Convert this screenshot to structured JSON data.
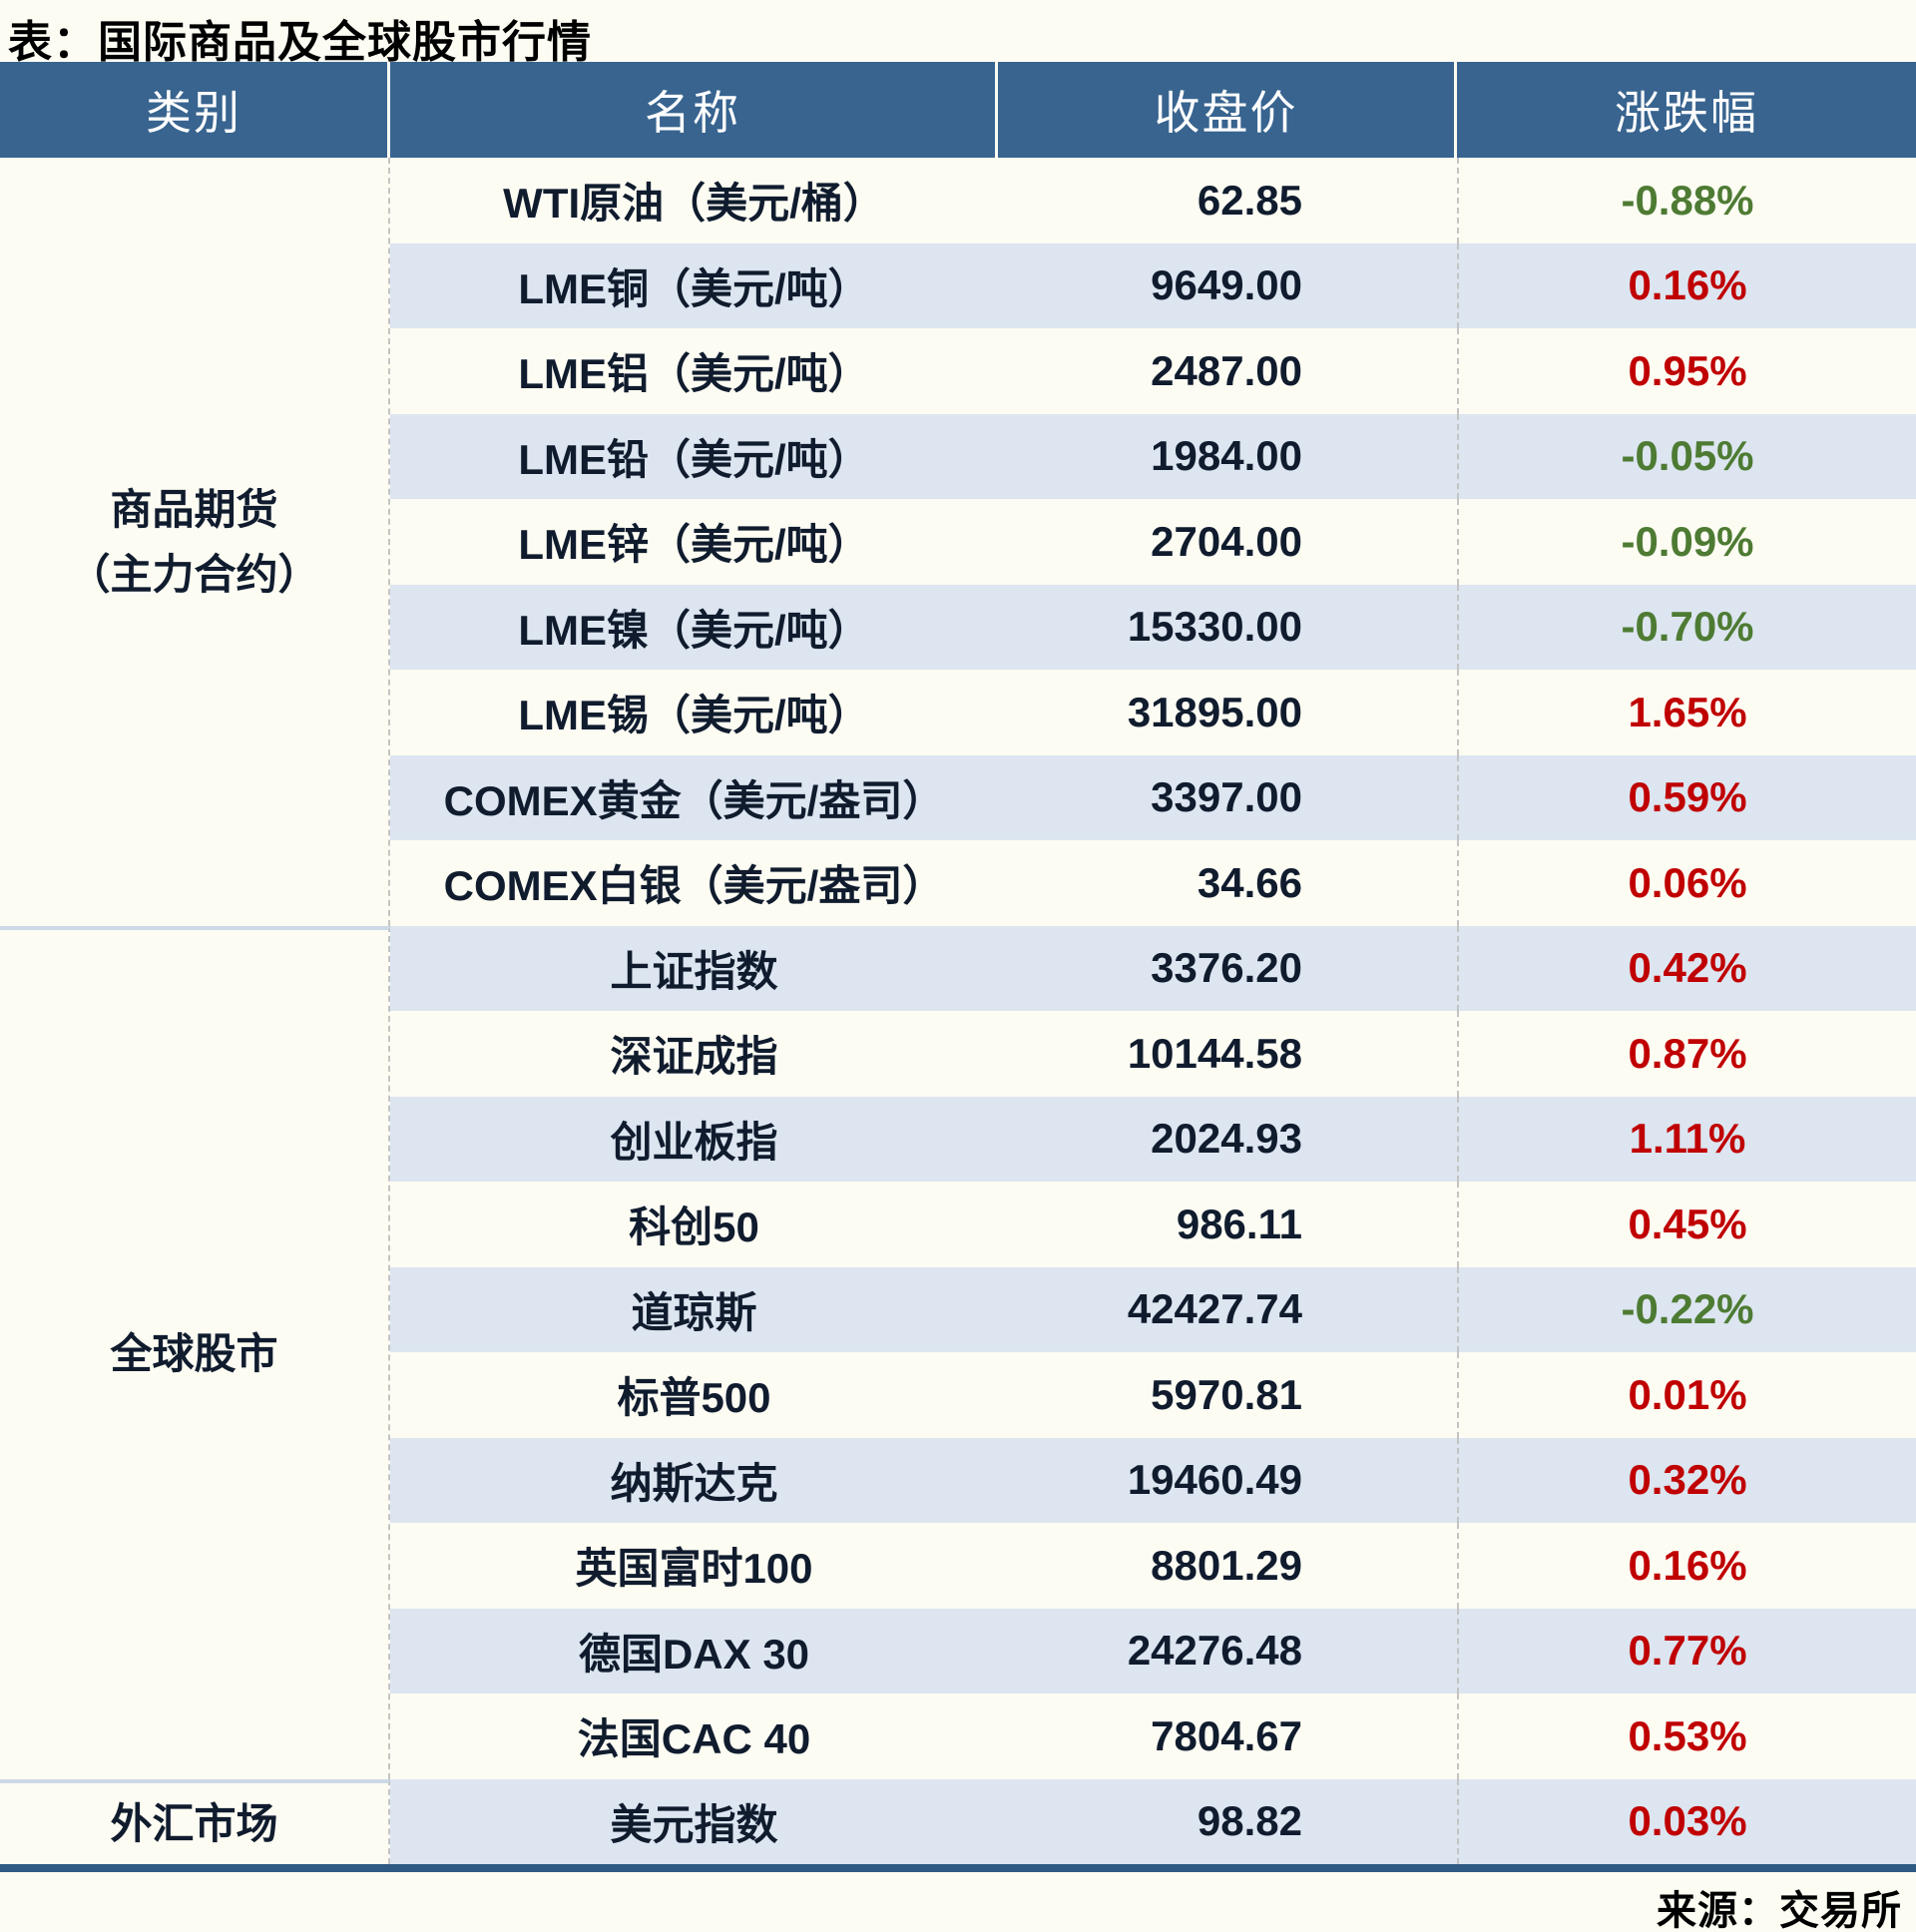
{
  "chart_data": {
    "type": "table",
    "title": "表：国际商品及全球股市行情",
    "source": "来源：交易所",
    "columns": [
      "类别",
      "名称",
      "收盘价",
      "涨跌幅"
    ],
    "sections": [
      {
        "category": "商品期货（主力合约）",
        "category_lines": [
          "商品期货",
          "（主力合约）"
        ],
        "rows": [
          [
            "WTI原油（美元/桶）",
            "62.85",
            "-0.88%"
          ],
          [
            "LME铜（美元/吨）",
            "9649.00",
            "0.16%"
          ],
          [
            "LME铝（美元/吨）",
            "2487.00",
            "0.95%"
          ],
          [
            "LME铅（美元/吨）",
            "1984.00",
            "-0.05%"
          ],
          [
            "LME锌（美元/吨）",
            "2704.00",
            "-0.09%"
          ],
          [
            "LME镍（美元/吨）",
            "15330.00",
            "-0.70%"
          ],
          [
            "LME锡（美元/吨）",
            "31895.00",
            "1.65%"
          ],
          [
            "COMEX黄金（美元/盎司）",
            "3397.00",
            "0.59%"
          ],
          [
            "COMEX白银（美元/盎司）",
            "34.66",
            "0.06%"
          ]
        ]
      },
      {
        "category": "全球股市",
        "category_lines": [
          "全球股市"
        ],
        "rows": [
          [
            "上证指数",
            "3376.20",
            "0.42%"
          ],
          [
            "深证成指",
            "10144.58",
            "0.87%"
          ],
          [
            "创业板指",
            "2024.93",
            "1.11%"
          ],
          [
            "科创50",
            "986.11",
            "0.45%"
          ],
          [
            "道琼斯",
            "42427.74",
            "-0.22%"
          ],
          [
            "标普500",
            "5970.81",
            "0.01%"
          ],
          [
            "纳斯达克",
            "19460.49",
            "0.32%"
          ],
          [
            "英国富时100",
            "8801.29",
            "0.16%"
          ],
          [
            "德国DAX 30",
            "24276.48",
            "0.77%"
          ],
          [
            "法国CAC 40",
            "7804.67",
            "0.53%"
          ]
        ]
      },
      {
        "category": "外汇市场",
        "category_lines": [
          "外汇市场"
        ],
        "rows": [
          [
            "美元指数",
            "98.82",
            "0.03%"
          ]
        ]
      }
    ]
  },
  "colors": {
    "page_bg": "#fdfcf3",
    "header_bg": "#38648f",
    "header_text": "#ffffff",
    "stripe": "#dce5f0",
    "text_dark": "#101c2e",
    "up_red": "#c00000",
    "down_green": "#4e7b33",
    "border_blue": "#2e5a84",
    "cat_sep": "#ccd9e7",
    "dash_gray": "#c4c4c4"
  }
}
